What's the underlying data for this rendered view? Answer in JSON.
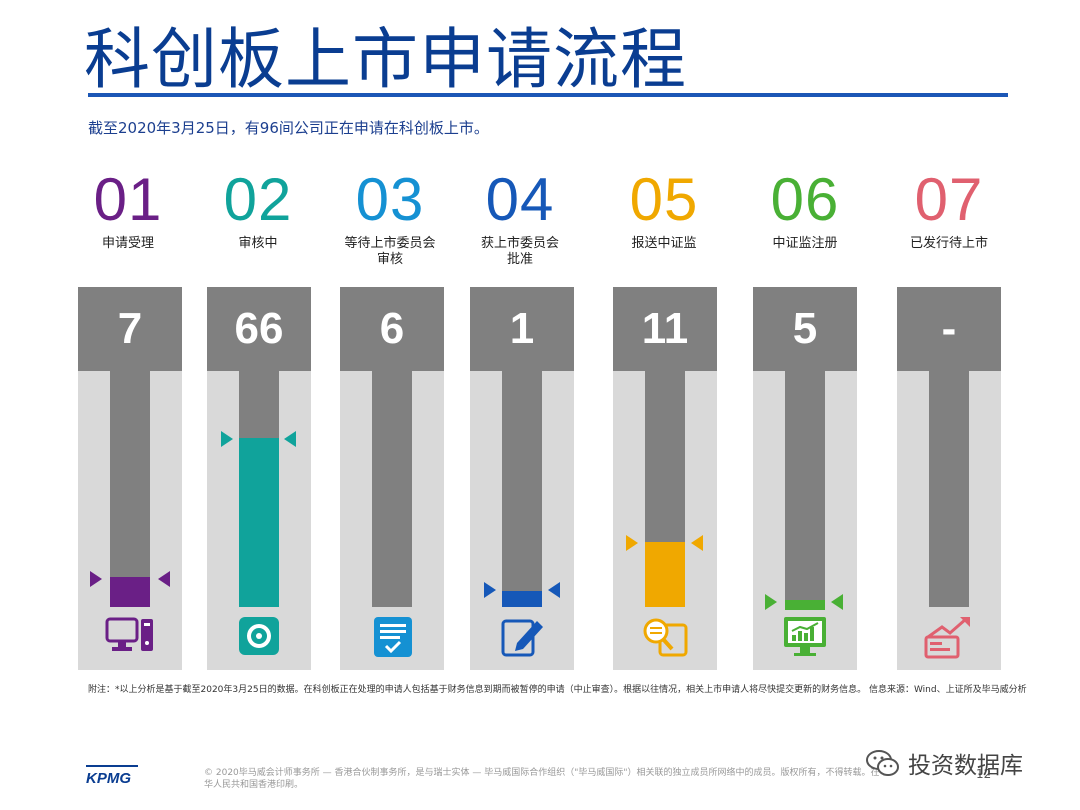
{
  "title": "科创板上市申请流程",
  "subtitle": "截至2020年3月25日，有96间公司正在申请在科创板上市。",
  "steps": [
    {
      "num": "01",
      "label_1": "申请受理",
      "label_2": "",
      "count": "7",
      "color": "#6a1f86",
      "fill_level": 0.05,
      "icon": "computer-icon"
    },
    {
      "num": "02",
      "label_1": "审核中",
      "label_2": "",
      "count": "66",
      "color": "#10a39b",
      "fill_level": 0.75,
      "icon": "disk-icon"
    },
    {
      "num": "03",
      "label_1": "等待上市委员会",
      "label_2": "审核",
      "count": "6",
      "color": "#1591d3",
      "fill_level": 0.0,
      "icon": "document-check-icon"
    },
    {
      "num": "04",
      "label_1": "获上市委员会",
      "label_2": "批准",
      "count": "1",
      "color": "#1658b8",
      "fill_level": 0.03,
      "icon": "edit-icon"
    },
    {
      "num": "05",
      "label_1": "报送中证监",
      "label_2": "",
      "count": "11",
      "color": "#f0a800",
      "fill_level": 0.27,
      "icon": "magnifier-document-icon"
    },
    {
      "num": "06",
      "label_1": "中证监注册",
      "label_2": "",
      "count": "5",
      "color": "#49b035",
      "fill_level": 0.02,
      "icon": "monitor-chart-icon"
    },
    {
      "num": "07",
      "label_1": "已发行待上市",
      "label_2": "",
      "count": "-",
      "color": "#e0606f",
      "fill_level": 0.0,
      "icon": "growth-arrow-icon"
    }
  ],
  "footnote": "附注：*以上分析是基于截至2020年3月25日的数据。在科创板正在处理的申请人包括基于财务信息到期而被暂停的申请（中止审查）。根据以往情况，相关上市申请人将尽快提交更新的财务信息。 信息来源：Wind、上证所及毕马威分析",
  "logo": "KPMG",
  "copyright": "© 2020毕马威会计师事务所 — 香港合伙制事务所，是与瑞士实体 — 毕马威国际合作组织（\"毕马威国际\"）相关联的独立成员所网络中的成员。版权所有，不得转载。在中华人民共和国香港印刷。",
  "page_number": "12",
  "watermark": "投资数据库"
}
